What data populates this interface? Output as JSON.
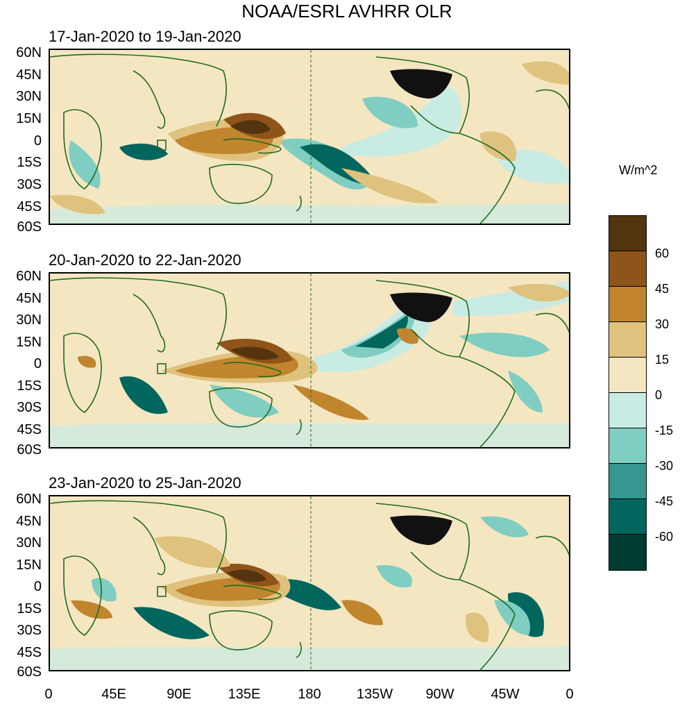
{
  "title": "NOAA/ESRL AVHRR OLR",
  "panels": [
    {
      "label": "17-Jan-2020 to 19-Jan-2020"
    },
    {
      "label": "20-Jan-2020 to 22-Jan-2020"
    },
    {
      "label": "23-Jan-2020 to 25-Jan-2020"
    }
  ],
  "lat_labels": [
    "60N",
    "45N",
    "30N",
    "15N",
    "0",
    "15S",
    "30S",
    "45S",
    "60S"
  ],
  "lon_labels": [
    "0",
    "45E",
    "90E",
    "135E",
    "180",
    "135W",
    "90W",
    "45W",
    "0"
  ],
  "colorbar": {
    "units": "W/m^2",
    "ticks": [
      "60",
      "45",
      "30",
      "15",
      "0",
      "-15",
      "-30",
      "-45",
      "-60"
    ],
    "colors": [
      "#54340f",
      "#8e5419",
      "#c1852e",
      "#dfc27d",
      "#f5e6c2",
      "#c8ebe4",
      "#80cdc1",
      "#35978f",
      "#01665e",
      "#003c30"
    ]
  },
  "map_colors": {
    "land_outline": "#1d6b1d",
    "usa_fill": "#111111",
    "neutral_positive": "#f5e6c2",
    "neutral_negative": "#c8ebe4",
    "dateline": "#1d6b1d"
  }
}
